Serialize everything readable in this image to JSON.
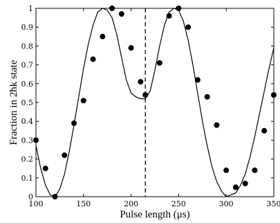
{
  "chart_data": {
    "type": "scatter",
    "xlabel": "Pulse length (μs)",
    "ylabel": "Fraction in 2ħk state",
    "xlim": [
      100,
      350
    ],
    "ylim": [
      0,
      1
    ],
    "x_ticks": [
      100,
      150,
      200,
      250,
      300,
      350
    ],
    "y_ticks": [
      0,
      0.1,
      0.2,
      0.3,
      0.4,
      0.5,
      0.6,
      0.7,
      0.8,
      0.9,
      1
    ],
    "x_tick_labels": [
      "100",
      "150",
      "200",
      "250",
      "300",
      "350"
    ],
    "y_tick_labels": [
      "0",
      "0.1",
      "0.2",
      "0.3",
      "0.4",
      "0.5",
      "0.6",
      "0.7",
      "0.8",
      "0.9",
      "1"
    ],
    "grid": false,
    "vertical_marker_x": 215,
    "series": [
      {
        "kind": "points",
        "x": [
          100,
          110,
          120,
          130,
          140,
          150,
          160,
          170,
          180,
          190,
          200,
          210,
          215,
          230,
          240,
          250,
          260,
          270,
          280,
          290,
          300,
          310,
          320,
          330,
          340,
          350
        ],
        "y": [
          0.3,
          0.15,
          0.0,
          0.22,
          0.39,
          0.51,
          0.73,
          0.85,
          1.0,
          0.97,
          0.79,
          0.61,
          0.54,
          0.71,
          0.96,
          1.0,
          0.9,
          0.62,
          0.53,
          0.38,
          0.14,
          0.05,
          0.07,
          0.14,
          0.35,
          0.54
        ]
      },
      {
        "kind": "line",
        "x": [
          100,
          105,
          110,
          115,
          120,
          125,
          130,
          135,
          140,
          145,
          150,
          155,
          160,
          165,
          170,
          175,
          180,
          185,
          190,
          195,
          200,
          205,
          210,
          215,
          220,
          225,
          230,
          235,
          240,
          245,
          250,
          255,
          260,
          265,
          270,
          275,
          280,
          285,
          290,
          295,
          300,
          305,
          310,
          315,
          320,
          325,
          330,
          335,
          340,
          345,
          350
        ],
        "y": [
          0.27,
          0.15,
          0.06,
          0.01,
          0.0,
          0.04,
          0.12,
          0.24,
          0.38,
          0.53,
          0.68,
          0.81,
          0.91,
          0.98,
          1.0,
          0.99,
          0.95,
          0.86,
          0.74,
          0.62,
          0.55,
          0.53,
          0.52,
          0.52,
          0.56,
          0.67,
          0.8,
          0.91,
          0.98,
          1.0,
          0.99,
          0.93,
          0.83,
          0.7,
          0.55,
          0.4,
          0.27,
          0.16,
          0.08,
          0.03,
          0.0,
          0.01,
          0.02,
          0.06,
          0.12,
          0.21,
          0.32,
          0.44,
          0.56,
          0.68,
          0.79
        ]
      }
    ]
  }
}
